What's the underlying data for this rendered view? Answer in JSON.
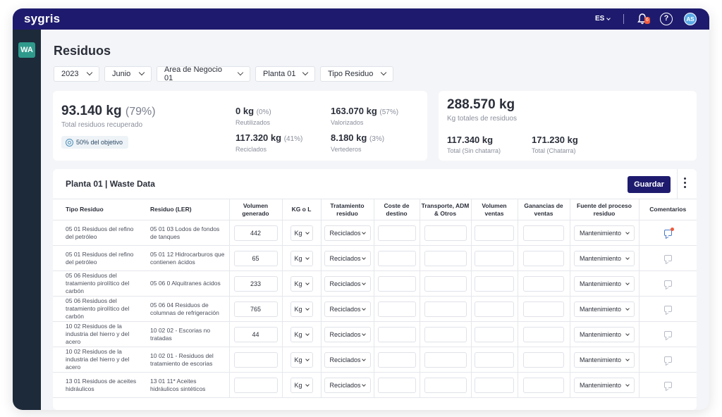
{
  "app": {
    "logo": "sygris",
    "language": "ES",
    "notifications": "6",
    "help": "?",
    "user_initials": "AS",
    "workspace": "WA"
  },
  "page": {
    "title": "Residuos"
  },
  "filters": [
    {
      "label": "2023"
    },
    {
      "label": "Junio"
    },
    {
      "label": "Area de Negocio 01"
    },
    {
      "label": "Planta 01"
    },
    {
      "label": "Tipo Residuo"
    }
  ],
  "summary": {
    "recovered_value": "93.140 kg",
    "recovered_pct": "(79%)",
    "recovered_label": "Total residuos recuperado",
    "goal": "50% del objetivo",
    "reused_value": "0 kg",
    "reused_pct": "(0%)",
    "reused_label": "Reutilizados",
    "valorized_value": "163.070 kg",
    "valorized_pct": "(57%)",
    "valorized_label": "Valorizados",
    "recycled_value": "117.320 kg",
    "recycled_pct": "(41%)",
    "recycled_label": "Reciclados",
    "landfill_value": "8.180 kg",
    "landfill_pct": "(3%)",
    "landfill_label": "Vertederos"
  },
  "totals": {
    "total_value": "288.570 kg",
    "total_label": "Kg totales de residuos",
    "no_scrap_value": "117.340 kg",
    "no_scrap_label": "Total (Sin chatarra)",
    "scrap_value": "171.230 kg",
    "scrap_label": "Total (Chatarra)"
  },
  "table": {
    "title": "Planta 01  |  Waste Data",
    "save_label": "Guardar",
    "columns": [
      "Tipo Residuo",
      "Residuo (LER)",
      "Volumen generado",
      "KG o L",
      "Tratamiento residuo",
      "Coste de destino",
      "Transporte, ADM & Otros",
      "Volumen ventas",
      "Ganancias de ventas",
      "Fuente del proceso residuo",
      "Comentarios"
    ],
    "rows": [
      {
        "tipo": "05 01 Residuos del refino del petróleo",
        "ler": "05 01 03 Lodos de fondos de tanques",
        "volumen": "442",
        "unit": "Kg",
        "tratamiento": "Reciclados",
        "fuente": "Mantenimiento",
        "comment_active": true
      },
      {
        "tipo": "05 01 Residuos del refino del petróleo",
        "ler": "05 01 12 Hidrocarburos que contienen ácidos",
        "volumen": "65",
        "unit": "Kg",
        "tratamiento": "Reciclados",
        "fuente": "Mantenimiento",
        "comment_active": false
      },
      {
        "tipo": "05 06 Residuos del tratamiento pirolítico del carbón",
        "ler": "05 06 0 Alquitranes ácidos",
        "volumen": "233",
        "unit": "Kg",
        "tratamiento": "Reciclados",
        "fuente": "Mantenimiento",
        "comment_active": false
      },
      {
        "tipo": "05 06 Residuos del tratamiento pirolítico del carbón",
        "ler": "05 06 04 Residuos de columnas de refrigeración",
        "volumen": "765",
        "unit": "Kg",
        "tratamiento": "Reciclados",
        "fuente": "Mantenimiento",
        "comment_active": false
      },
      {
        "tipo": "10 02 Residuos de la industria del hierro y del acero",
        "ler": "10 02 02 - Escorias no tratadas",
        "volumen": "44",
        "unit": "Kg",
        "tratamiento": "Reciclados",
        "fuente": "Mantenimiento",
        "comment_active": false
      },
      {
        "tipo": "10 02 Residuos de la industria del hierro y del acero",
        "ler": "10 02 01 - Residuos del tratamiento de escorias",
        "volumen": "",
        "unit": "Kg",
        "tratamiento": "Reciclados",
        "fuente": "Mantenimiento",
        "comment_active": false
      },
      {
        "tipo": "13 01 Residuos de aceites hidráulicos",
        "ler": "13 01 11* Aceites hidráulicos sintéticos",
        "volumen": "",
        "unit": "Kg",
        "tratamiento": "Reciclados",
        "fuente": "Mantenimiento",
        "comment_active": false
      }
    ]
  }
}
